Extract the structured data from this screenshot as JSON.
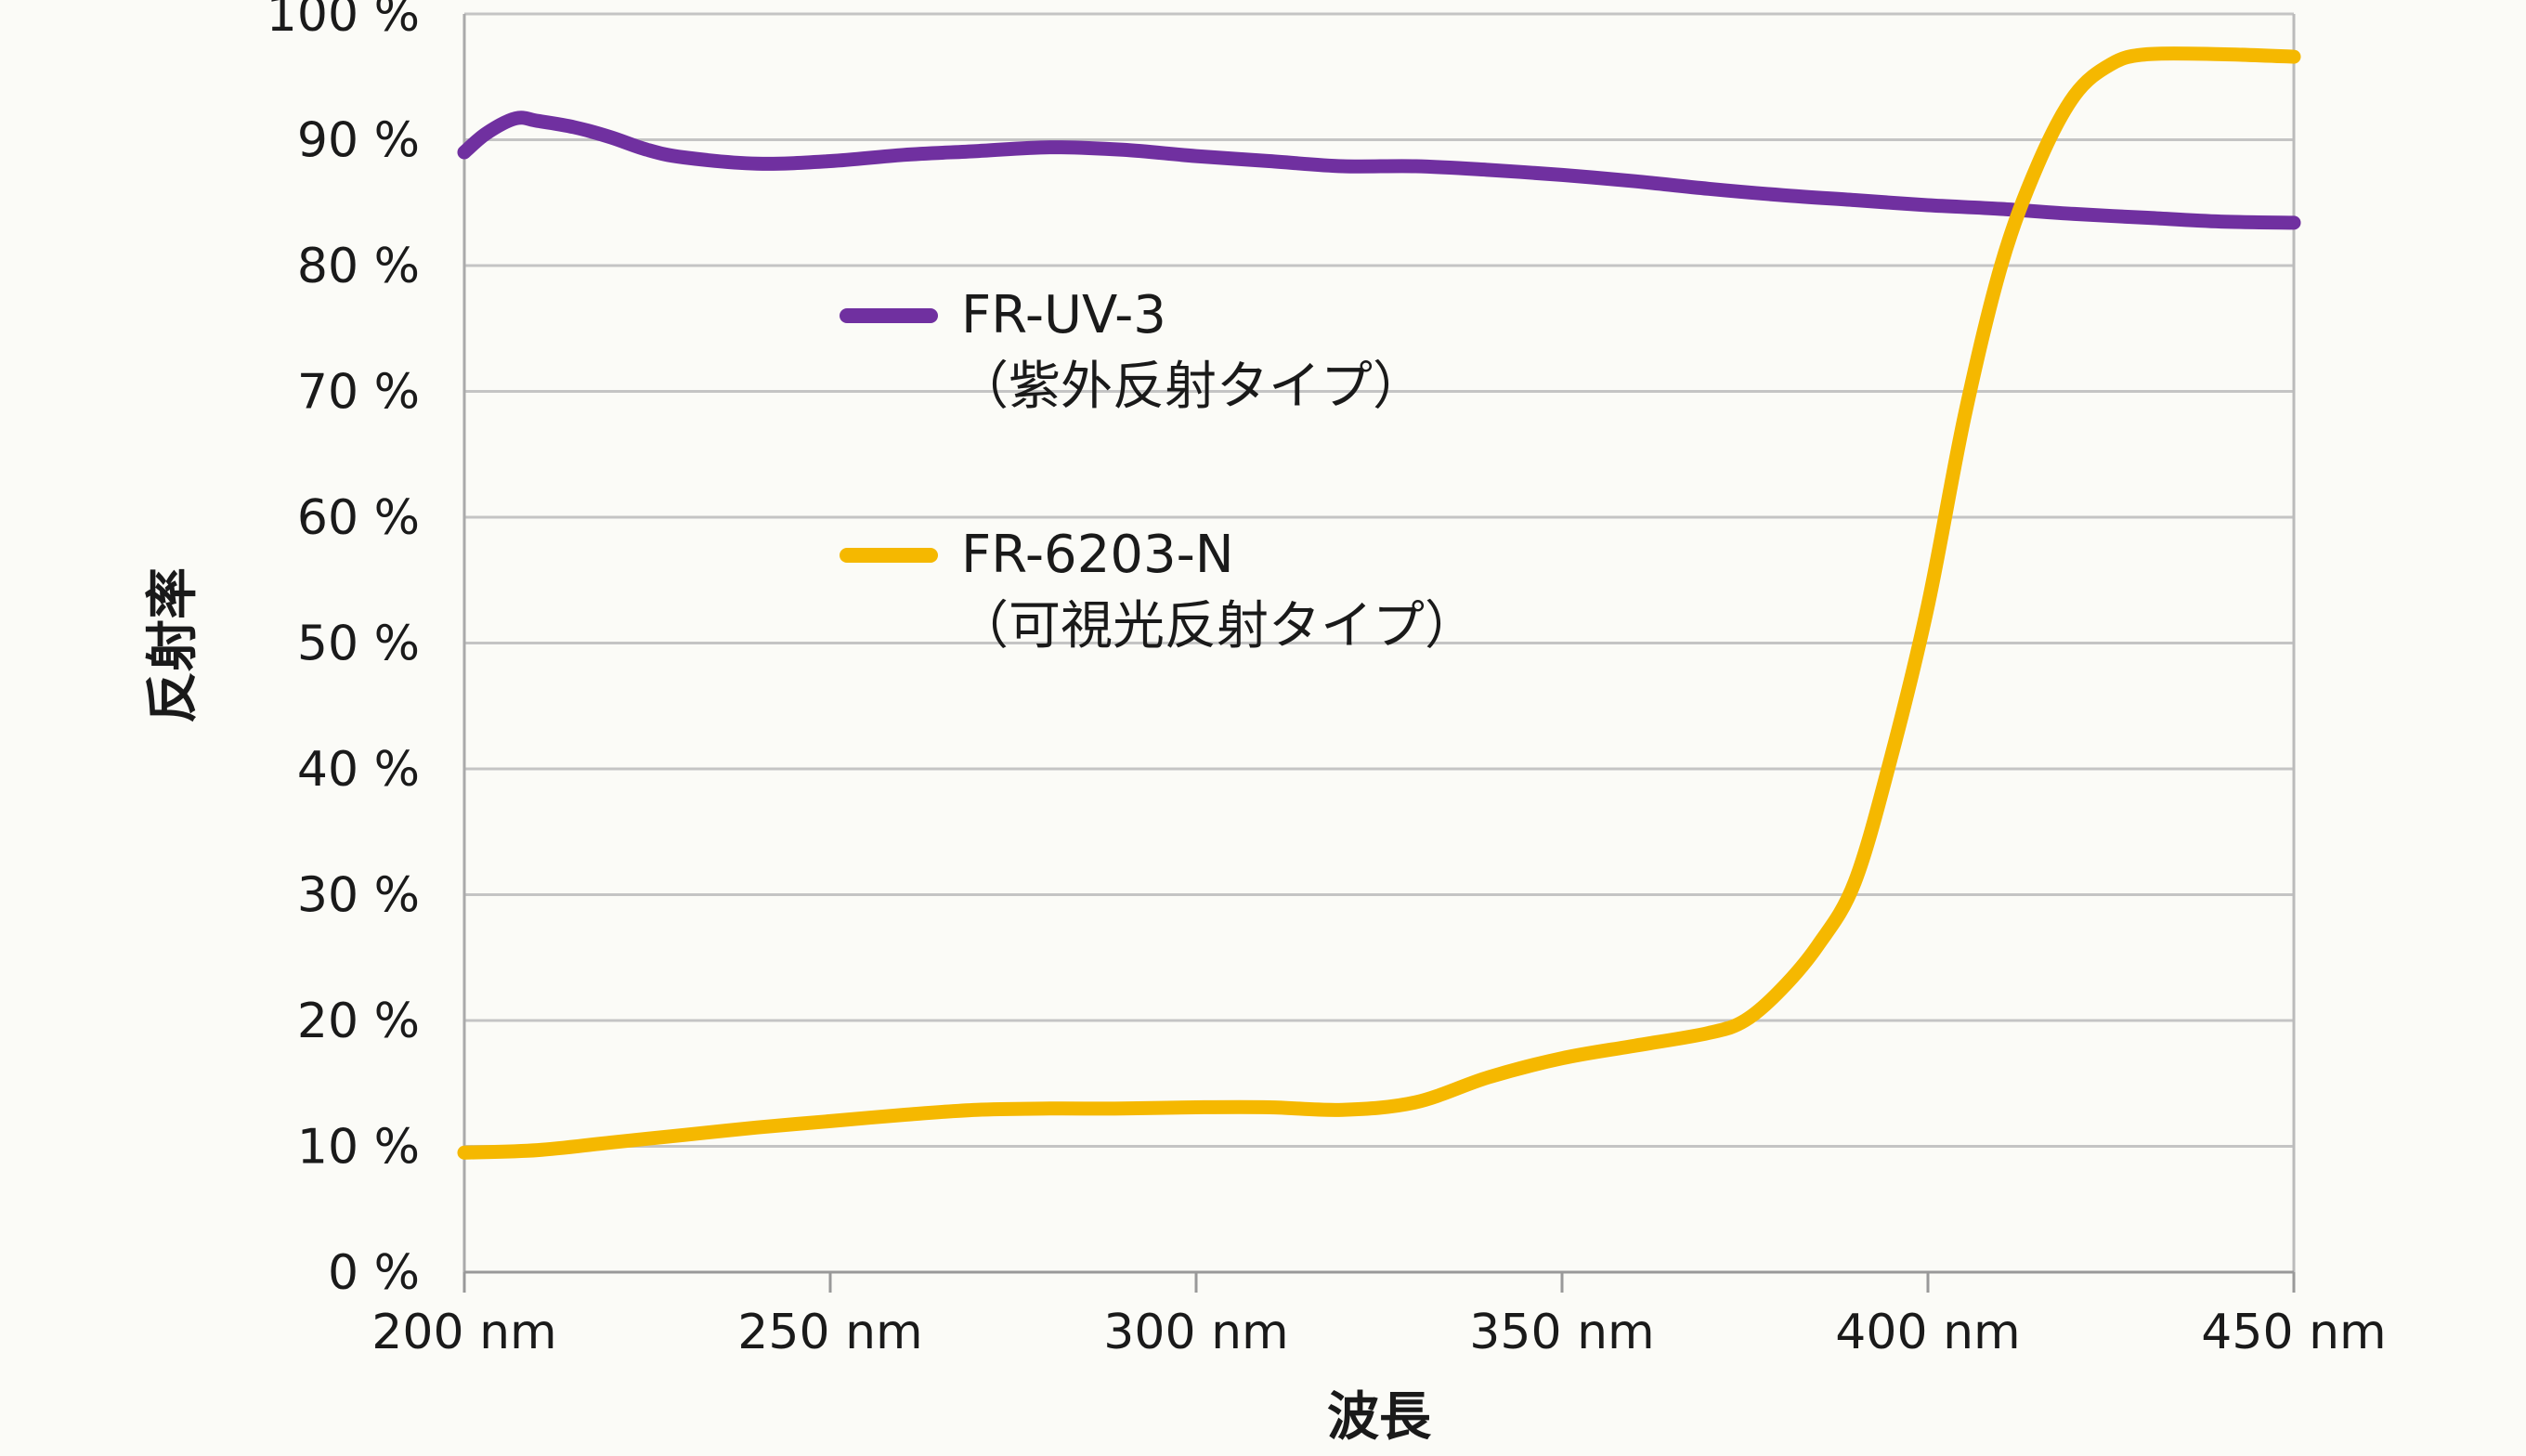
{
  "chart_data": {
    "type": "line",
    "xlabel": "波長",
    "ylabel": "反射率",
    "xlim": [
      200,
      450
    ],
    "ylim": [
      0,
      100
    ],
    "grid": true,
    "legend_position": "center-left",
    "x_ticks": [
      200,
      250,
      300,
      350,
      400,
      450
    ],
    "x_tick_labels": [
      "200 nm",
      "250 nm",
      "300 nm",
      "350 nm",
      "400 nm",
      "450 nm"
    ],
    "y_ticks": [
      0,
      10,
      20,
      30,
      40,
      50,
      60,
      70,
      80,
      90,
      100
    ],
    "y_tick_labels": [
      "0 %",
      "10 %",
      "20 %",
      "30 %",
      "40 %",
      "50 %",
      "60 %",
      "70 %",
      "80 %",
      "90 %",
      "100 %"
    ],
    "series": [
      {
        "name": "FR-UV-3",
        "sublabel": "（紫外反射タイプ）",
        "color": "#7030a0",
        "x": [
          200,
          203,
          207,
          210,
          215,
          220,
          225,
          230,
          240,
          250,
          260,
          270,
          280,
          290,
          300,
          310,
          320,
          330,
          340,
          350,
          360,
          370,
          380,
          390,
          400,
          410,
          420,
          430,
          440,
          450
        ],
        "y": [
          89,
          90.5,
          91.7,
          91.5,
          91,
          90.2,
          89.2,
          88.6,
          88.1,
          88.3,
          88.8,
          89.1,
          89.4,
          89.2,
          88.7,
          88.3,
          87.9,
          87.9,
          87.6,
          87.2,
          86.7,
          86.1,
          85.6,
          85.2,
          84.8,
          84.5,
          84.1,
          83.8,
          83.5,
          83.4
        ]
      },
      {
        "name": "FR-6203-N",
        "sublabel": "（可視光反射タイプ）",
        "color": "#f5b800",
        "x": [
          200,
          210,
          220,
          230,
          240,
          250,
          260,
          270,
          280,
          290,
          300,
          310,
          320,
          330,
          340,
          350,
          360,
          370,
          375,
          380,
          385,
          390,
          395,
          400,
          405,
          410,
          415,
          420,
          425,
          430,
          440,
          450
        ],
        "y": [
          9.5,
          9.7,
          10.3,
          10.9,
          11.5,
          12,
          12.5,
          12.9,
          13,
          13,
          13.1,
          13.1,
          12.9,
          13.5,
          15.5,
          17,
          18,
          19,
          20,
          22.5,
          26,
          31,
          41,
          53,
          68,
          80,
          88,
          93.5,
          96,
          96.8,
          96.8,
          96.6
        ]
      }
    ]
  }
}
